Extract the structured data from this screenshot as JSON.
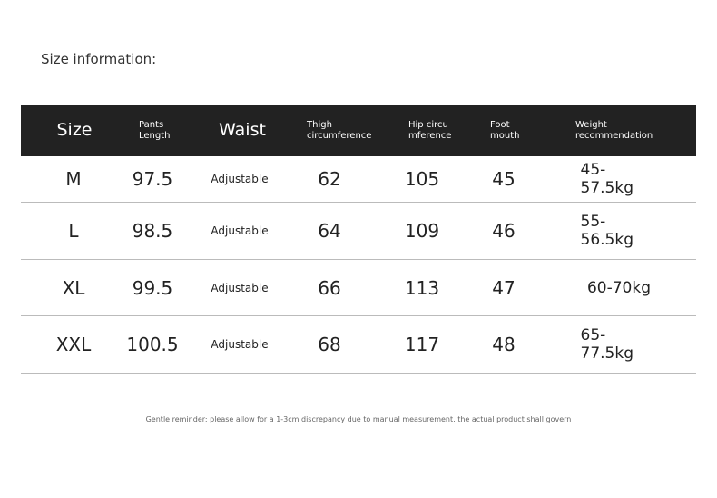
{
  "title": "Size information:",
  "table": {
    "header": [
      [
        "Size"
      ],
      [
        "Pants",
        "Length"
      ],
      [
        "Waist"
      ],
      [
        "Thigh",
        "circumference"
      ],
      [
        "Hip circu",
        "mference"
      ],
      [
        "Foot",
        "mouth"
      ],
      [
        "Weight",
        "recommendation"
      ]
    ],
    "rows": [
      [
        "M",
        97.5,
        "Adjustable",
        62,
        105,
        45,
        "45-57.5kg"
      ],
      [
        "L",
        98.5,
        "Adjustable",
        64,
        109,
        46,
        "55-56.5kg"
      ],
      [
        "XL",
        99.5,
        "Adjustable",
        66,
        113,
        47,
        "60-70kg"
      ],
      [
        "XXL",
        100.5,
        "Adjustable",
        68,
        117,
        48,
        "65-77.5kg"
      ]
    ]
  },
  "note": "Gentle reminder: please allow for a 1-3cm discrepancy due to manual measurement. the actual product shall govern"
}
